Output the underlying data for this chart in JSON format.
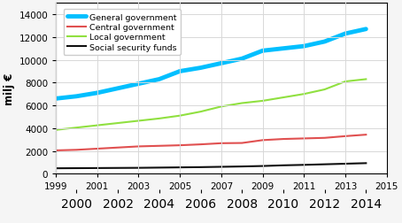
{
  "years": [
    1999,
    2000,
    2001,
    2002,
    2003,
    2004,
    2005,
    2006,
    2007,
    2008,
    2009,
    2010,
    2011,
    2012,
    2013,
    2014
  ],
  "general_government": [
    6600,
    6800,
    7100,
    7500,
    7900,
    8300,
    9000,
    9300,
    9700,
    10100,
    10800,
    11000,
    11200,
    11600,
    12300,
    12700
  ],
  "central_government": [
    2050,
    2100,
    2200,
    2300,
    2400,
    2450,
    2500,
    2580,
    2680,
    2700,
    2950,
    3050,
    3100,
    3150,
    3300,
    3430
  ],
  "local_government": [
    3850,
    4050,
    4250,
    4450,
    4650,
    4850,
    5100,
    5450,
    5900,
    6200,
    6400,
    6700,
    7000,
    7400,
    8100,
    8300
  ],
  "social_security_funds": [
    480,
    490,
    500,
    510,
    520,
    540,
    560,
    580,
    610,
    640,
    680,
    740,
    780,
    830,
    880,
    930
  ],
  "colors": {
    "general_government": "#00bfff",
    "central_government": "#e05050",
    "local_government": "#90e040",
    "social_security_funds": "#101010"
  },
  "line_widths": {
    "general_government": 3.5,
    "central_government": 1.5,
    "local_government": 1.5,
    "social_security_funds": 1.5
  },
  "ylabel": "milj €",
  "xlim": [
    1999,
    2015
  ],
  "ylim": [
    0,
    15000
  ],
  "yticks": [
    0,
    2000,
    4000,
    6000,
    8000,
    10000,
    12000,
    14000
  ],
  "xticks_odd": [
    1999,
    2001,
    2003,
    2005,
    2007,
    2009,
    2011,
    2013,
    2015
  ],
  "xticks_even": [
    2000,
    2002,
    2004,
    2006,
    2008,
    2010,
    2012,
    2014
  ],
  "legend_labels": [
    "General government",
    "Central government",
    "Local government",
    "Social security funds"
  ],
  "plot_bg_color": "#ffffff",
  "fig_bg_color": "#f5f5f5",
  "grid_color": "#d8d8d8"
}
